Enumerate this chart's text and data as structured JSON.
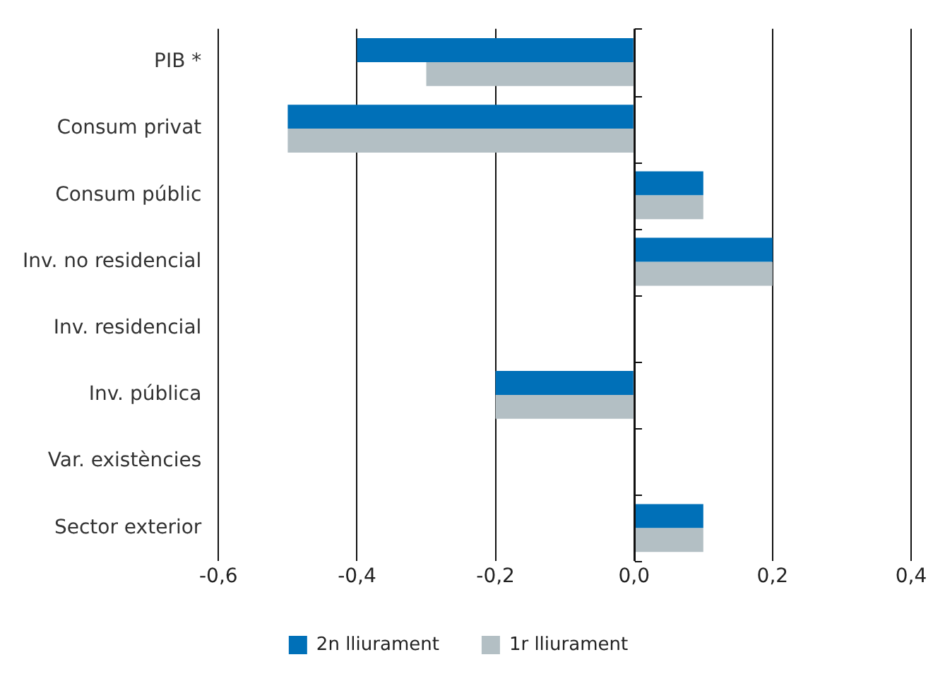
{
  "chart_data": {
    "type": "bar",
    "orientation": "horizontal",
    "categories": [
      "PIB *",
      "Consum privat",
      "Consum públic",
      "Inv. no residencial",
      "Inv. residencial",
      "Inv. pública",
      "Var. existències",
      "Sector exterior"
    ],
    "series": [
      {
        "name": "2n lliurament",
        "color": "#0070b8",
        "values": [
          -0.4,
          -0.5,
          0.1,
          0.2,
          0,
          -0.2,
          0,
          0.1
        ]
      },
      {
        "name": "1r lliurament",
        "color": "#b3bfc4",
        "values": [
          -0.3,
          -0.5,
          0.1,
          0.2,
          0,
          -0.2,
          0,
          0.1
        ]
      }
    ],
    "xlim": [
      -0.6,
      0.4
    ],
    "xticks": [
      {
        "value": -0.6,
        "label": "-0,6"
      },
      {
        "value": -0.4,
        "label": "-0,4"
      },
      {
        "value": -0.2,
        "label": "-0,2"
      },
      {
        "value": 0,
        "label": "0,0"
      },
      {
        "value": 0.2,
        "label": "0,2"
      },
      {
        "value": 0.4,
        "label": "0,4"
      }
    ],
    "grid": "x",
    "legend": "bottom"
  }
}
